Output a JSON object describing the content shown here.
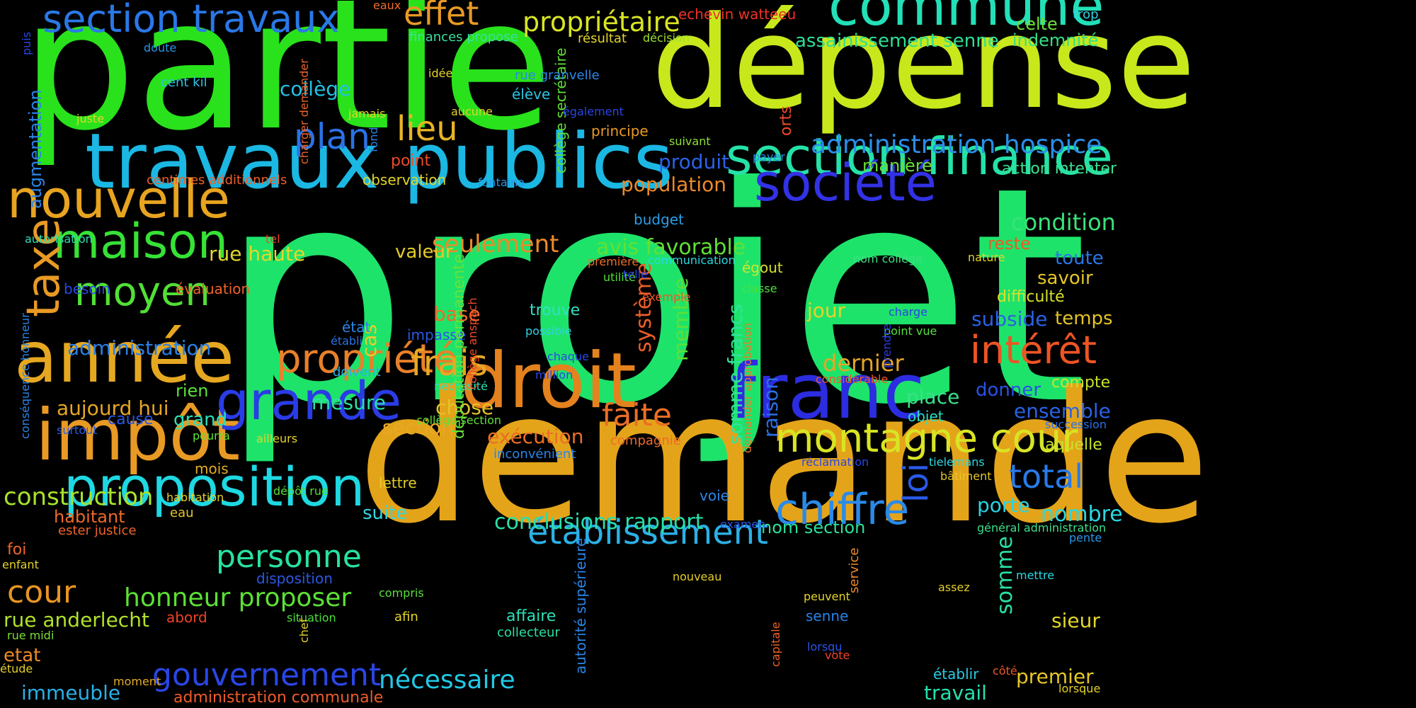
{
  "words": [
    {
      "text": "projet",
      "color": "#1ee36a"
    },
    {
      "text": "partie",
      "color": "#29e21c"
    },
    {
      "text": "demande",
      "color": "#e4a41a"
    },
    {
      "text": "dépense",
      "color": "#c8e81c"
    },
    {
      "text": "travaux publics",
      "color": "#1ab8e2"
    },
    {
      "text": "commune",
      "color": "#22e0b8"
    },
    {
      "text": "section finance",
      "color": "#24e2a8"
    },
    {
      "text": "droit",
      "color": "#e4821e"
    },
    {
      "text": "franc",
      "color": "#2c2ce0"
    },
    {
      "text": "société",
      "color": "#3232e6"
    },
    {
      "text": "année",
      "color": "#e6a820"
    },
    {
      "text": "impôt",
      "color": "#e89a24"
    },
    {
      "text": "nouvelle",
      "color": "#e8a420"
    },
    {
      "text": "maison",
      "color": "#36e236"
    },
    {
      "text": "proposition",
      "color": "#1ed8e2"
    },
    {
      "text": "grande",
      "color": "#2a3ce6"
    },
    {
      "text": "section travaux",
      "color": "#2a78e6"
    },
    {
      "text": "chiffre",
      "color": "#2a8ae8"
    },
    {
      "text": "établissement",
      "color": "#2cb0e6"
    },
    {
      "text": "montagne cour",
      "color": "#d8e424"
    },
    {
      "text": "propriété",
      "color": "#e8802a"
    },
    {
      "text": "moyen",
      "color": "#52e036"
    },
    {
      "text": "taxe",
      "color": "#e89a24"
    },
    {
      "text": "intérêt",
      "color": "#ee5424"
    },
    {
      "text": "gouvernement",
      "color": "#2a46e6"
    },
    {
      "text": "administration hospice",
      "color": "#2a8ee8"
    },
    {
      "text": "plan",
      "color": "#2a72e6"
    },
    {
      "text": "lieu",
      "color": "#e8b426"
    },
    {
      "text": "effet",
      "color": "#e89a24"
    },
    {
      "text": "frais",
      "color": "#e8a824"
    },
    {
      "text": "faite",
      "color": "#ec6e26"
    },
    {
      "text": "loi",
      "color": "#2a5ae8"
    },
    {
      "text": "total",
      "color": "#2a7ae8"
    },
    {
      "text": "personne",
      "color": "#28e29e"
    },
    {
      "text": "cour",
      "color": "#e89424"
    },
    {
      "text": "propriétaire",
      "color": "#d8e424"
    },
    {
      "text": "honneur proposer",
      "color": "#5ce034"
    },
    {
      "text": "nécessaire",
      "color": "#22c8e4"
    },
    {
      "text": "construction",
      "color": "#a8e22c"
    },
    {
      "text": "seulement",
      "color": "#ec8a28"
    },
    {
      "text": "avis favorable",
      "color": "#62e034"
    },
    {
      "text": "conclusions rapport",
      "color": "#28e0a8"
    },
    {
      "text": "condition",
      "color": "#3ae27c"
    },
    {
      "text": "système",
      "color": "#ec5e28"
    },
    {
      "text": "dernier",
      "color": "#e8a624"
    },
    {
      "text": "exécution",
      "color": "#ec6e26"
    },
    {
      "text": "somme francs",
      "color": "#32e29c"
    },
    {
      "text": "raison",
      "color": "#2a70e6"
    },
    {
      "text": "assainissement senne",
      "color": "#2ce096"
    },
    {
      "text": "indemnité",
      "color": "#36e084"
    },
    {
      "text": "rue anderlecht",
      "color": "#b0e22a"
    },
    {
      "text": "aujourd hui",
      "color": "#e8a626"
    },
    {
      "text": "administration",
      "color": "#2a80e6"
    },
    {
      "text": "collège",
      "color": "#24c0e4"
    },
    {
      "text": "population",
      "color": "#ec8a26"
    },
    {
      "text": "produit",
      "color": "#2a62e6"
    },
    {
      "text": "section",
      "color": "#e8a826"
    },
    {
      "text": "nom section",
      "color": "#2ae09a"
    },
    {
      "text": "immeuble",
      "color": "#2ab0e6"
    },
    {
      "text": "administration communale",
      "color": "#ee5c2a"
    },
    {
      "text": "nombre",
      "color": "#2ad8e2"
    },
    {
      "text": "ensemble",
      "color": "#2a62e6"
    },
    {
      "text": "subside",
      "color": "#2a62e6"
    },
    {
      "text": "place",
      "color": "#3ae08a"
    },
    {
      "text": "jour",
      "color": "#e4d428"
    },
    {
      "text": "base",
      "color": "#ee6a28"
    },
    {
      "text": "valeur",
      "color": "#e4cc28"
    },
    {
      "text": "rue haute",
      "color": "#e2d82a"
    },
    {
      "text": "mesure",
      "color": "#2ae0a2"
    },
    {
      "text": "chose",
      "color": "#e4c428"
    },
    {
      "text": "cas",
      "color": "#e4ce2a"
    },
    {
      "text": "membre",
      "color": "#5ee036"
    },
    {
      "text": "somme",
      "color": "#2ae0a4"
    },
    {
      "text": "travail",
      "color": "#26e0b0"
    },
    {
      "text": "premier",
      "color": "#e4c628"
    },
    {
      "text": "sieur",
      "color": "#e2d62a"
    },
    {
      "text": "porte",
      "color": "#2ad4e2"
    },
    {
      "text": "toute",
      "color": "#2a76e6"
    },
    {
      "text": "savoir",
      "color": "#e4c42a"
    },
    {
      "text": "temps",
      "color": "#e4c428"
    },
    {
      "text": "difficulté",
      "color": "#d6e22a"
    },
    {
      "text": "donner",
      "color": "#2a52e6"
    },
    {
      "text": "compte",
      "color": "#c8e22c"
    },
    {
      "text": "laquelle",
      "color": "#c8e22c"
    },
    {
      "text": "action intenter",
      "color": "#3ae090"
    },
    {
      "text": "manière",
      "color": "#6ae036"
    },
    {
      "text": "reste",
      "color": "#ec5a2a"
    },
    {
      "text": "celte",
      "color": "#6ee036"
    },
    {
      "text": "trop",
      "color": "#2ad4e2"
    },
    {
      "text": "echevin watteeu",
      "color": "#ee3228"
    },
    {
      "text": "résultat",
      "color": "#e4d42a"
    },
    {
      "text": "décision",
      "color": "#9ee030"
    },
    {
      "text": "finances propose",
      "color": "#3ae0a2"
    },
    {
      "text": "eaux",
      "color": "#ee6a28"
    },
    {
      "text": "principe",
      "color": "#e89a26"
    },
    {
      "text": "suivant",
      "color": "#8ee032"
    },
    {
      "text": "payer",
      "color": "#2a8ee8"
    },
    {
      "text": "orts",
      "color": "#ee4a28"
    },
    {
      "text": "collège secrétaire",
      "color": "#62e036"
    },
    {
      "text": "budget",
      "color": "#2a9ee8"
    },
    {
      "text": "communication",
      "color": "#2ad8e2"
    },
    {
      "text": "première",
      "color": "#ee7028"
    },
    {
      "text": "utilité",
      "color": "#4ee036"
    },
    {
      "text": "égout",
      "color": "#d8e22a"
    },
    {
      "text": "classe",
      "color": "#4ce03a"
    },
    {
      "text": "nom collège",
      "color": "#3ee082"
    },
    {
      "text": "nature",
      "color": "#e0d62a"
    },
    {
      "text": "exemple",
      "color": "#ee5628"
    },
    {
      "text": "trouve",
      "color": "#32e0c4"
    },
    {
      "text": "possible",
      "color": "#32d2e2"
    },
    {
      "text": "impasse",
      "color": "#2a58e6"
    },
    {
      "text": "chaque",
      "color": "#2a4ae6"
    },
    {
      "text": "million",
      "color": "#2a48e6"
    },
    {
      "text": "nécessité",
      "color": "#2ae0b6"
    },
    {
      "text": "collège section",
      "color": "#5ee036"
    },
    {
      "text": "compagnie",
      "color": "#ee6a28"
    },
    {
      "text": "inconvénient",
      "color": "#2a86e8"
    },
    {
      "text": "lettre",
      "color": "#e4ce28"
    },
    {
      "text": "suite",
      "color": "#32d8e2"
    },
    {
      "text": "dépôt rue",
      "color": "#52e036"
    },
    {
      "text": "ailleurs",
      "color": "#e4d428"
    },
    {
      "text": "mois",
      "color": "#e4ac28"
    },
    {
      "text": "grand",
      "color": "#2ae0b6"
    },
    {
      "text": "pourra",
      "color": "#62e036"
    },
    {
      "text": "rien",
      "color": "#5ae038"
    },
    {
      "text": "cause",
      "color": "#2a58e6"
    },
    {
      "text": "surtout",
      "color": "#2a5ee6"
    },
    {
      "text": "habitation",
      "color": "#e4d428"
    },
    {
      "text": "eau",
      "color": "#e4c628"
    },
    {
      "text": "habitant",
      "color": "#ee6a28"
    },
    {
      "text": "ester justice",
      "color": "#ee6628"
    },
    {
      "text": "foi",
      "color": "#ee6628"
    },
    {
      "text": "enfant",
      "color": "#e4d428"
    },
    {
      "text": "abord",
      "color": "#ee4228"
    },
    {
      "text": "etat",
      "color": "#ee8a28"
    },
    {
      "text": "rue midi",
      "color": "#7ae034"
    },
    {
      "text": "étude",
      "color": "#e4ce28"
    },
    {
      "text": "moment",
      "color": "#e4ac28"
    },
    {
      "text": "situation",
      "color": "#4ae03a"
    },
    {
      "text": "disposition",
      "color": "#2a58e6"
    },
    {
      "text": "compris",
      "color": "#5ae038"
    },
    {
      "text": "afin",
      "color": "#e4d428"
    },
    {
      "text": "chef",
      "color": "#e4d428"
    },
    {
      "text": "affaire",
      "color": "#2ae0b6"
    },
    {
      "text": "collecteur",
      "color": "#2ae0a2"
    },
    {
      "text": "autorité supérieure",
      "color": "#2a86e8"
    },
    {
      "text": "voie",
      "color": "#2a86e8"
    },
    {
      "text": "nouveau",
      "color": "#e4ce28"
    },
    {
      "text": "examen",
      "color": "#2a56e6"
    },
    {
      "text": "service",
      "color": "#ee8a28"
    },
    {
      "text": "peuvent",
      "color": "#e4d428"
    },
    {
      "text": "senne",
      "color": "#2a82e8"
    },
    {
      "text": "lorsqu",
      "color": "#2a56e6"
    },
    {
      "text": "capitale",
      "color": "#ee6028"
    },
    {
      "text": "vote",
      "color": "#ee4228"
    },
    {
      "text": "établir",
      "color": "#2acae2"
    },
    {
      "text": "côté",
      "color": "#ee5628"
    },
    {
      "text": "lorsque",
      "color": "#e4d428"
    },
    {
      "text": "mettre",
      "color": "#2ad8e2"
    },
    {
      "text": "assez",
      "color": "#e4ce28"
    },
    {
      "text": "pente",
      "color": "#2a96e8"
    },
    {
      "text": "général administration",
      "color": "#3ee08a"
    },
    {
      "text": "bâtiment",
      "color": "#e4c628"
    },
    {
      "text": "tielemans",
      "color": "#2ad8e2"
    },
    {
      "text": "réclamation",
      "color": "#2a46e6"
    },
    {
      "text": "succession",
      "color": "#2a70e6"
    },
    {
      "text": "objet",
      "color": "#2ae0c2"
    },
    {
      "text": "considérable",
      "color": "#ee5628"
    },
    {
      "text": "demander approbation",
      "color": "#ee7a28"
    },
    {
      "text": "charge",
      "color": "#2a42e6"
    },
    {
      "text": "point vue",
      "color": "#4ee03a"
    },
    {
      "text": "prendre",
      "color": "#2a3ee6"
    },
    {
      "text": "députation permanente",
      "color": "#6ae036"
    },
    {
      "text": "collège anspach",
      "color": "#ee4a28"
    },
    {
      "text": "état",
      "color": "#2a86e8"
    },
    {
      "text": "établi",
      "color": "#2a72e6"
    },
    {
      "text": "doivent",
      "color": "#2ab0e6"
    },
    {
      "text": "observation",
      "color": "#e4d428"
    },
    {
      "text": "fontaina",
      "color": "#2a96e8"
    },
    {
      "text": "point",
      "color": "#ee4a28"
    },
    {
      "text": "idée",
      "color": "#e4d428"
    },
    {
      "text": "aucune",
      "color": "#e4d428"
    },
    {
      "text": "jamais",
      "color": "#e4d428"
    },
    {
      "text": "fond",
      "color": "#2a86e8"
    },
    {
      "text": "élève",
      "color": "#2ac4e4"
    },
    {
      "text": "également",
      "color": "#2a44e6"
    },
    {
      "text": "rue granvelle",
      "color": "#2a88e8"
    },
    {
      "text": "doute",
      "color": "#2a96e8"
    },
    {
      "text": "cent kil",
      "color": "#2ac6e4"
    },
    {
      "text": "juste",
      "color": "#e4d428"
    },
    {
      "text": "charger demander",
      "color": "#ee6428"
    },
    {
      "text": "centimes additionnels",
      "color": "#ee6028"
    },
    {
      "text": "augmentation",
      "color": "#2a86e8"
    },
    {
      "text": "puis",
      "color": "#2a46e6"
    },
    {
      "text": "autorisation",
      "color": "#2ae0b2"
    },
    {
      "text": "tel",
      "color": "#ee4228"
    },
    {
      "text": "besoin",
      "color": "#2a4ae6"
    },
    {
      "text": "évaluation",
      "color": "#ee6428"
    },
    {
      "text": "conséquence honneur",
      "color": "#2a86e8"
    },
    {
      "text": "telle",
      "color": "#2a44e6"
    }
  ]
}
